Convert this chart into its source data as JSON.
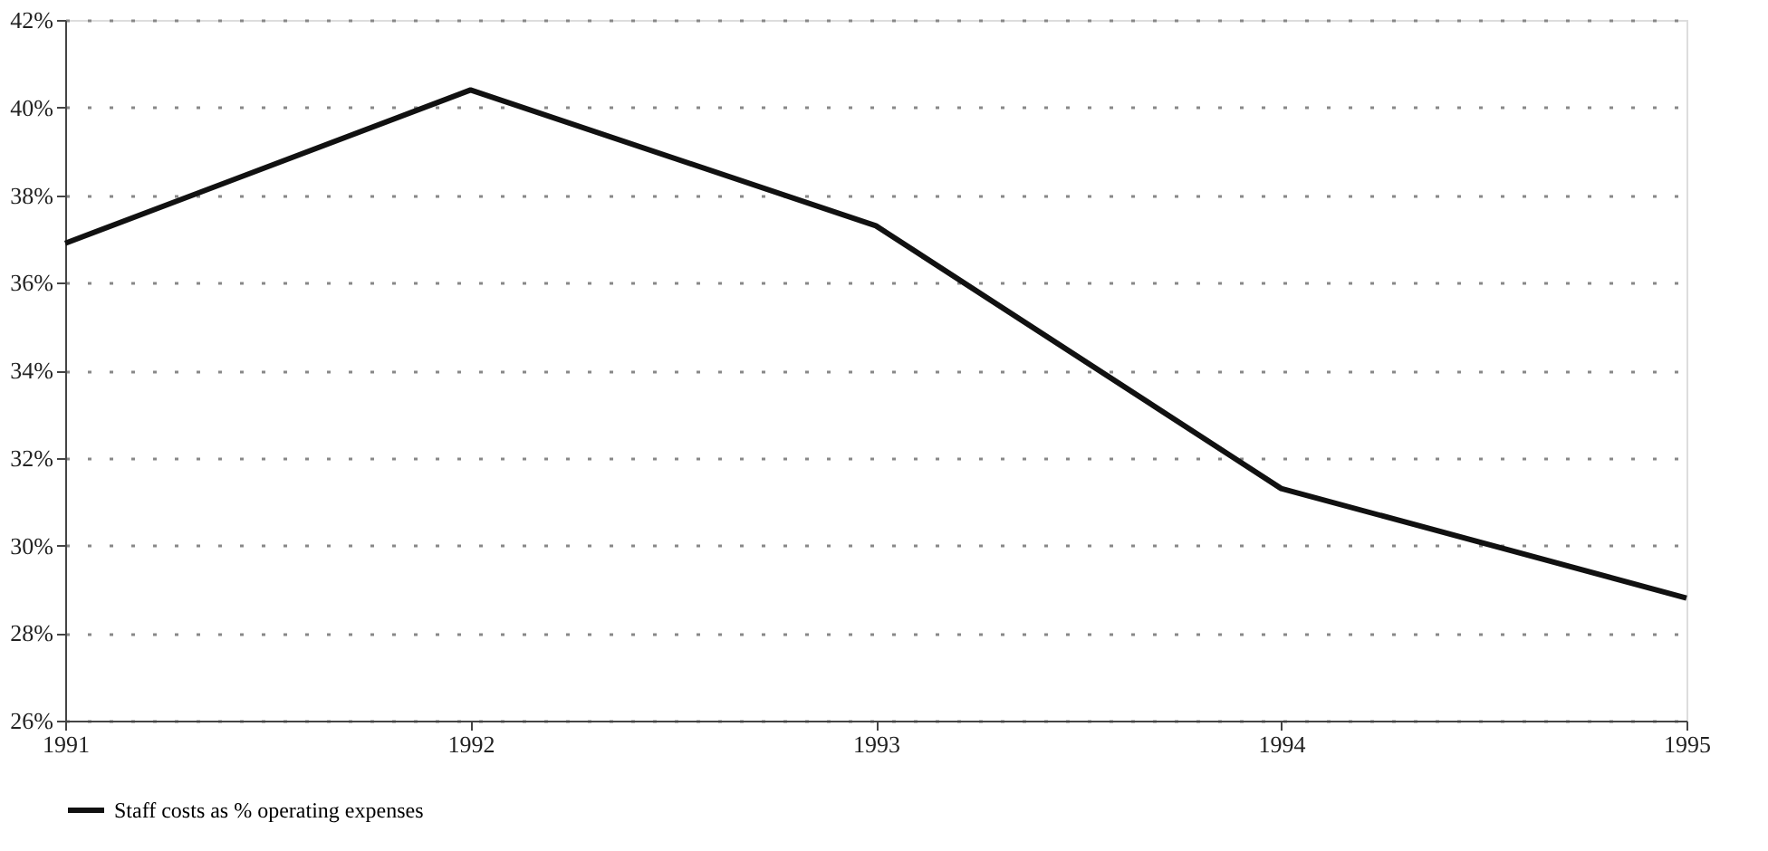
{
  "chart_data": {
    "type": "line",
    "categories": [
      "1991",
      "1992",
      "1993",
      "1994",
      "1995"
    ],
    "series": [
      {
        "name": "Staff costs as % operating expenses",
        "color": "#111111",
        "values": [
          36.9,
          40.4,
          37.3,
          31.3,
          28.8
        ]
      }
    ],
    "ylim": [
      26,
      42
    ],
    "yticks": [
      {
        "value": 26,
        "label": "26%"
      },
      {
        "value": 28,
        "label": "28%"
      },
      {
        "value": 30,
        "label": "30%"
      },
      {
        "value": 32,
        "label": "32%"
      },
      {
        "value": 34,
        "label": "34%"
      },
      {
        "value": 36,
        "label": "36%"
      },
      {
        "value": 38,
        "label": "38%"
      },
      {
        "value": 40,
        "label": "40%"
      },
      {
        "value": 42,
        "label": "42%"
      }
    ],
    "grid": "y",
    "legend": "bottom",
    "marker": "none",
    "line_style": "solid"
  }
}
